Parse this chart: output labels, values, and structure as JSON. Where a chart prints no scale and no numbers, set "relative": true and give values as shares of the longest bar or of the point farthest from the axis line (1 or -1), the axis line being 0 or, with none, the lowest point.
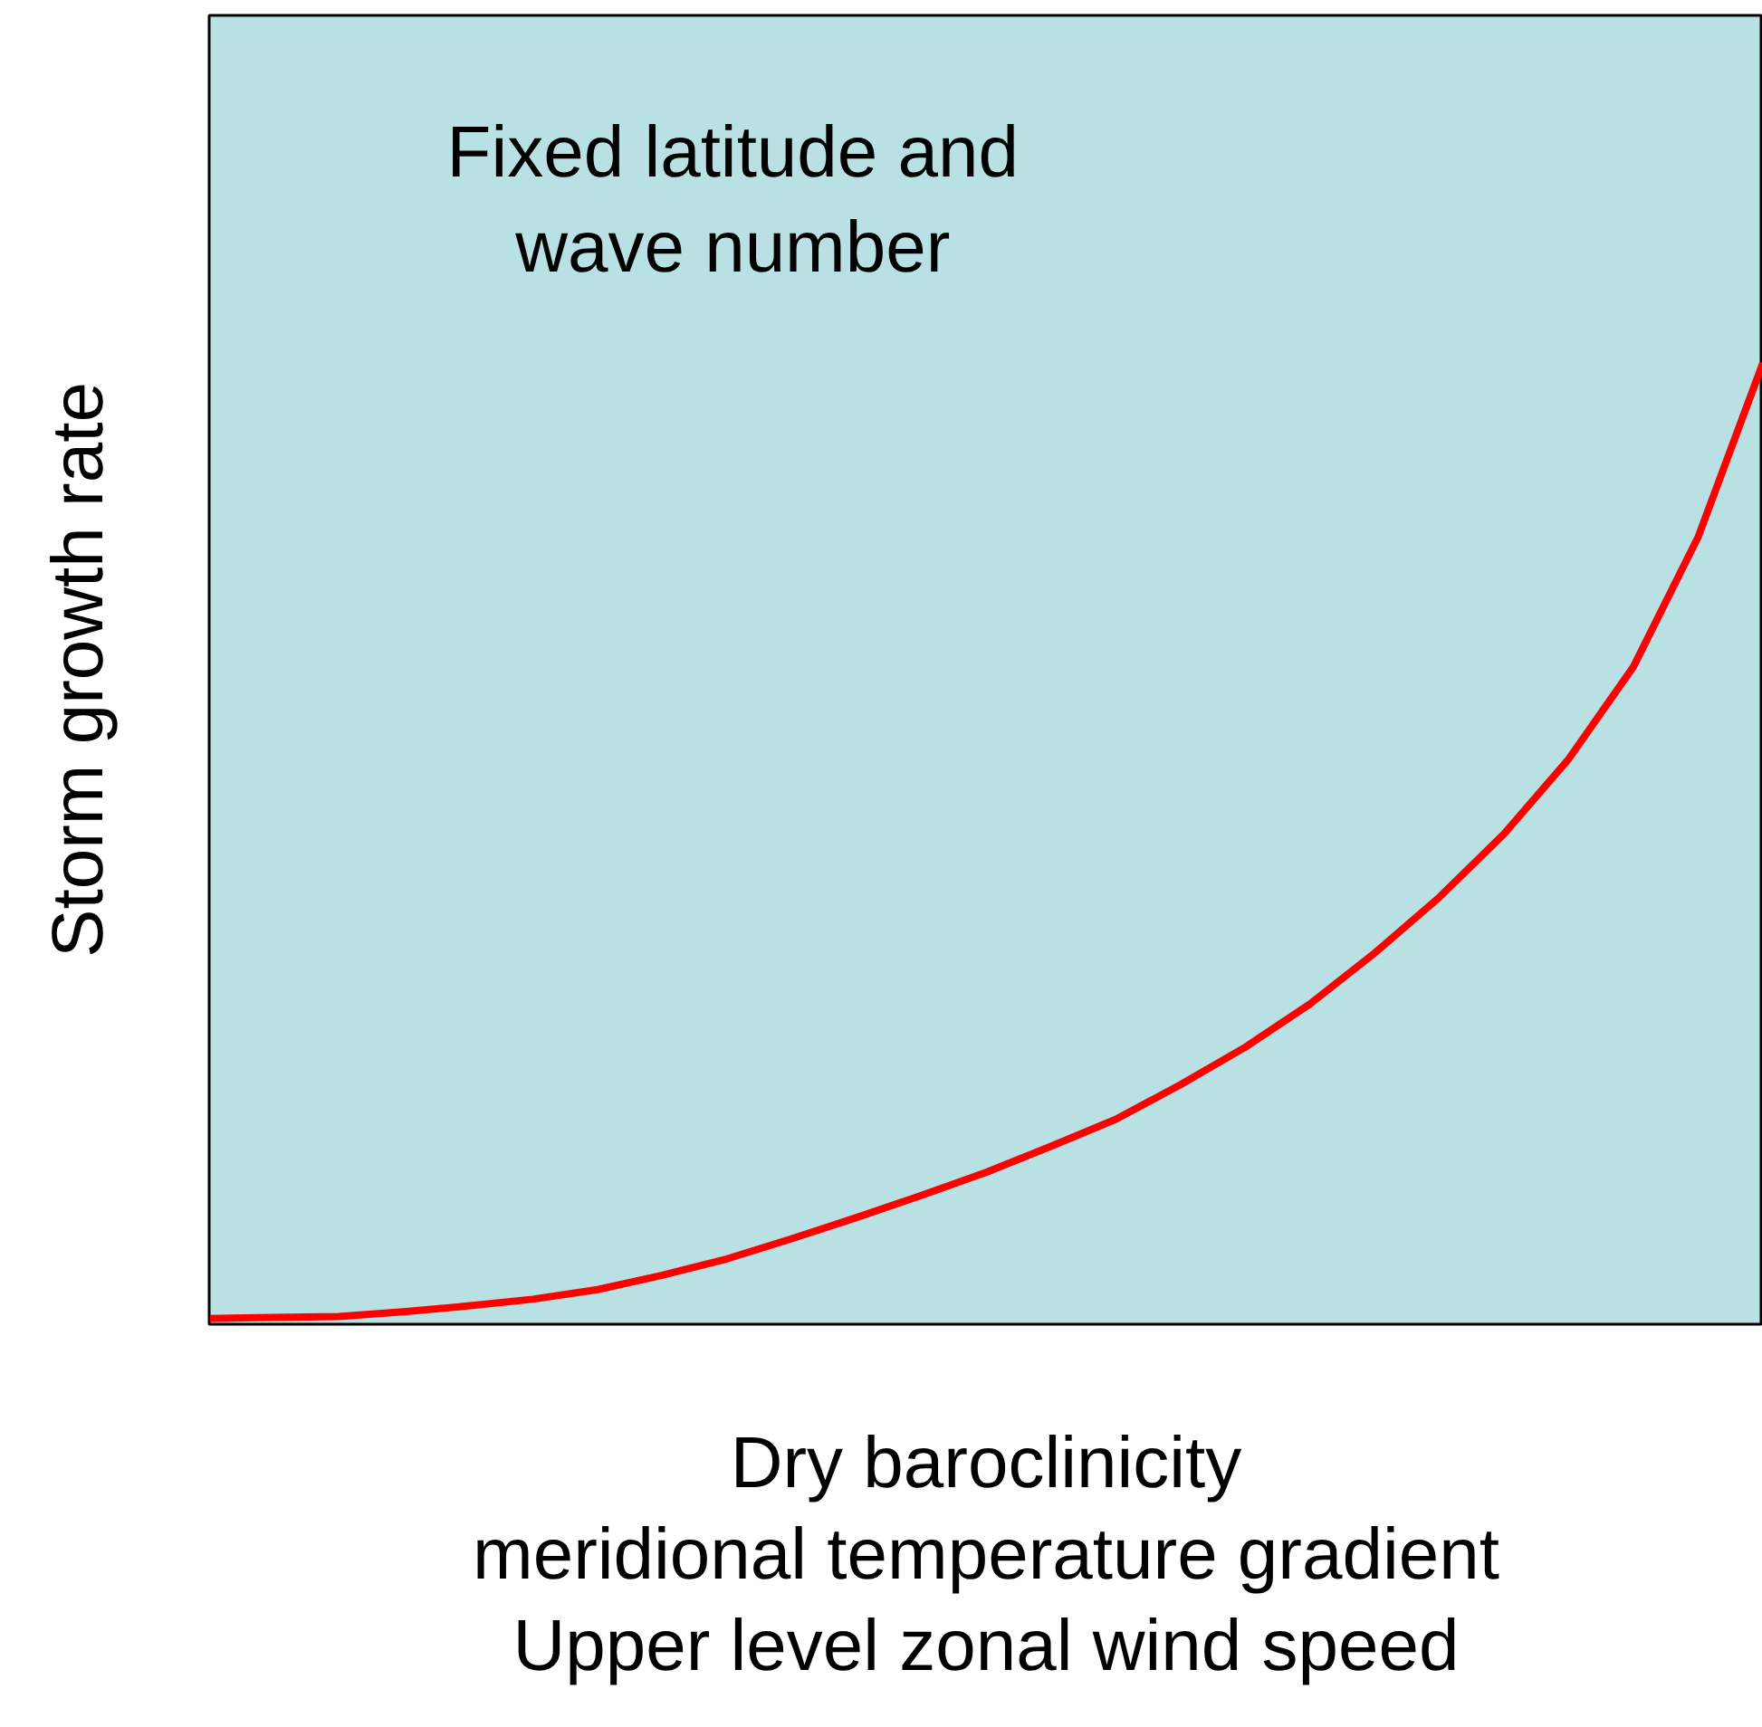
{
  "chart_data": {
    "type": "line",
    "relative": true,
    "xlabel": "Dry baroclinicity\nmeridional temperature gradient\nUpper level zonal wind speed",
    "ylabel": "Storm growth rate",
    "annotations": [
      "Fixed latitude and\nwave number"
    ],
    "categories": [
      null,
      null,
      null,
      null,
      null,
      null,
      null,
      null,
      null,
      null,
      null,
      null,
      null,
      null,
      null,
      null,
      null,
      null,
      null,
      null,
      null,
      null,
      null,
      null,
      null
    ],
    "series": [
      {
        "color": "#ff0000",
        "values": [
          0.006,
          0.007,
          0.008,
          0.013,
          0.019,
          0.026,
          0.036,
          0.051,
          0.068,
          0.089,
          0.111,
          0.134,
          0.158,
          0.185,
          0.213,
          0.249,
          0.288,
          0.333,
          0.386,
          0.444,
          0.51,
          0.588,
          0.684,
          0.819,
          1.0
        ]
      }
    ]
  }
}
